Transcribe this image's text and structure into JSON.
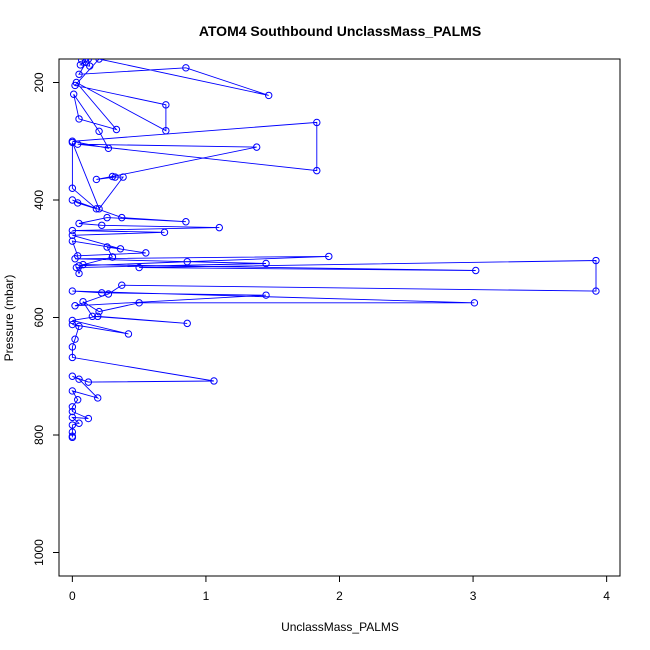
{
  "chart_data": {
    "type": "line",
    "title": "ATOM4 Southbound UnclassMass_PALMS",
    "xlabel": "UnclassMass_PALMS",
    "ylabel": "Pressure (mbar)",
    "xlim": [
      -0.1,
      4.1
    ],
    "ylim": [
      1040,
      160
    ],
    "y_reversed": true,
    "xticks": [
      0,
      1,
      2,
      3,
      4
    ],
    "yticks": [
      200,
      400,
      600,
      800,
      1000
    ],
    "marker": "open-circle",
    "line_color": "#0000ff",
    "grid": false,
    "legend": "none",
    "series": [
      {
        "x": [
          0.07,
          0.1,
          0.06,
          0.13,
          0.12,
          0.05,
          0.85,
          1.47,
          0.2,
          0.02,
          0.7,
          0.7,
          0.03,
          0.33,
          0.05,
          0.01,
          0.2,
          0.27,
          0.0,
          1.83,
          1.83,
          0.04,
          1.38,
          0.3,
          0.18,
          0.32,
          0.38,
          0.2,
          0.0,
          0.0,
          0.18,
          0.04,
          0.0,
          0.37,
          0.85,
          0.26,
          0.05,
          0.22,
          1.1,
          0.0,
          0.69,
          0.0,
          0.36,
          0.0,
          0.04,
          0.55,
          0.26,
          0.3,
          0.3,
          0.05,
          1.92,
          0.02,
          0.86,
          1.45,
          0.03,
          0.05,
          0.08,
          3.02,
          0.5,
          3.92,
          3.92,
          0.37,
          0.27,
          0.02,
          1.45,
          0.22,
          0.0,
          3.01,
          0.5,
          0.2,
          0.08,
          0.15,
          0.86,
          0.19,
          0.0,
          0.42,
          0.0,
          0.05,
          0.02,
          0.0,
          0.0,
          1.06,
          0.12,
          0.0,
          0.05,
          0.19,
          0.0,
          0.04,
          0.0,
          0.0,
          0.12,
          0.0,
          0.05,
          0.0,
          0.0,
          0.0,
          0.0
        ],
        "y": [
          162,
          165,
          170,
          172,
          160,
          186,
          175,
          222,
          160,
          205,
          238,
          282,
          200,
          280,
          262,
          220,
          283,
          312,
          300,
          268,
          350,
          305,
          310,
          360,
          365,
          361,
          361,
          415,
          302,
          380,
          415,
          405,
          400,
          430,
          437,
          430,
          440,
          443,
          447,
          452,
          455,
          460,
          483,
          470,
          495,
          490,
          480,
          497,
          497,
          512,
          496,
          500,
          505,
          508,
          515,
          525,
          510,
          520,
          515,
          503,
          555,
          545,
          560,
          580,
          562,
          558,
          555,
          575,
          575,
          590,
          573,
          598,
          610,
          598,
          605,
          628,
          612,
          615,
          637,
          650,
          668,
          708,
          710,
          700,
          705,
          737,
          725,
          740,
          752,
          760,
          772,
          770,
          780,
          783,
          795,
          802,
          804
        ]
      }
    ]
  }
}
